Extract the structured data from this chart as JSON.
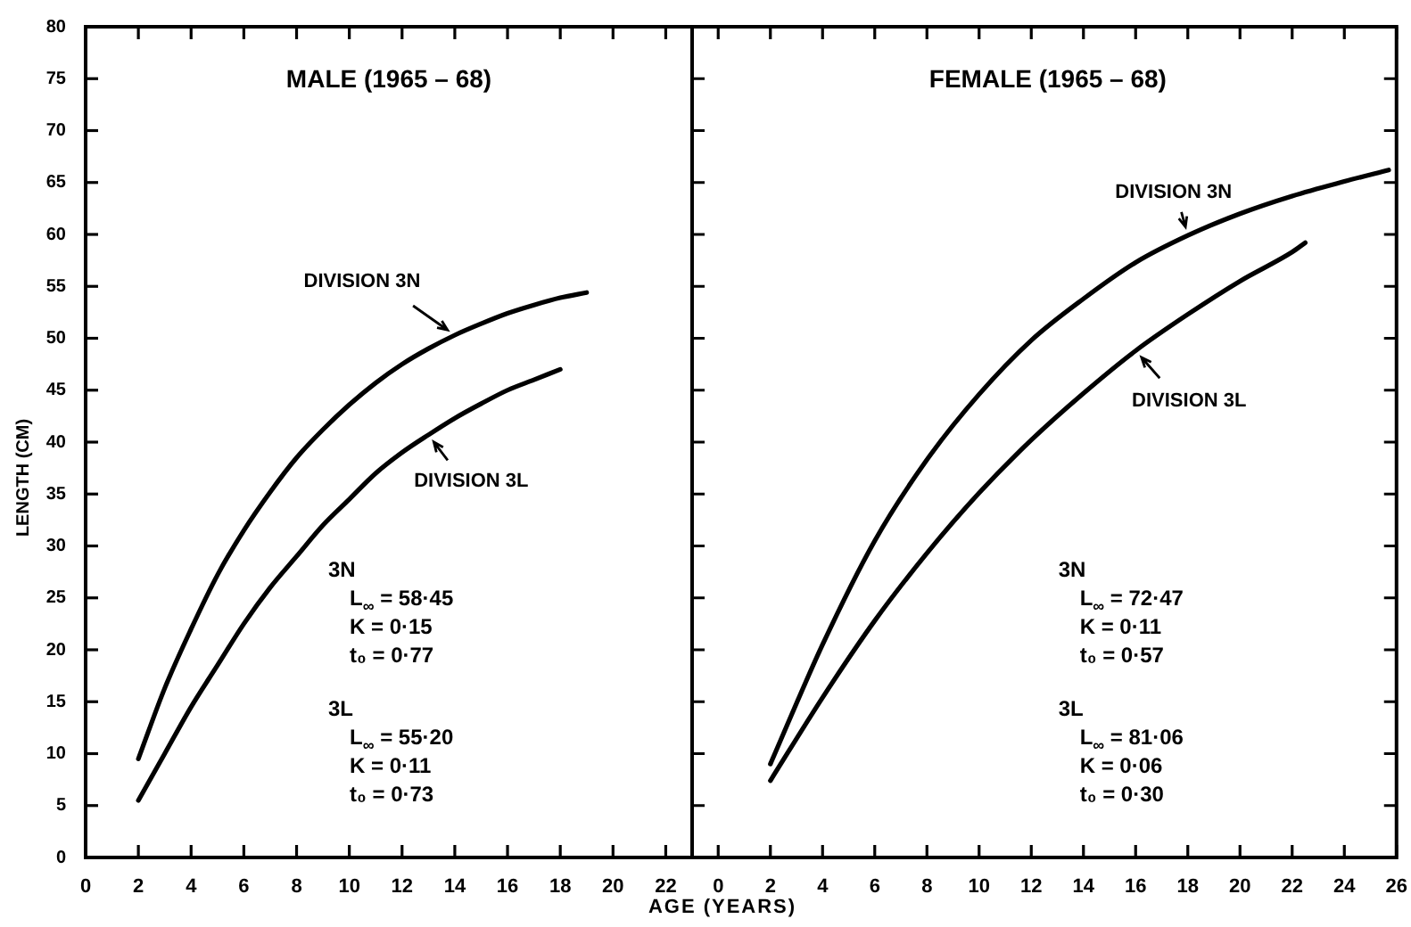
{
  "chart_data": [
    {
      "type": "line",
      "title": "MALE (1965 – 68)",
      "ylabel": "LENGTH (CM)",
      "xlim": [
        0,
        23
      ],
      "xticks": [
        0,
        2,
        4,
        6,
        8,
        10,
        12,
        14,
        16,
        18,
        20,
        22
      ],
      "ylim": [
        0,
        80
      ],
      "yticks": [
        0,
        5,
        10,
        15,
        20,
        25,
        30,
        35,
        40,
        45,
        50,
        55,
        60,
        65,
        70,
        75,
        80
      ],
      "marker": "none",
      "line_style": "solid",
      "series": [
        {
          "name": "DIVISION 3N",
          "color": "#000000",
          "x": [
            2,
            3,
            4,
            5,
            6,
            7,
            8,
            9,
            10,
            11,
            12,
            13,
            14,
            15,
            16,
            17,
            18,
            19
          ],
          "values": [
            9.5,
            16.3,
            22,
            27.2,
            31.5,
            35.2,
            38.5,
            41.2,
            43.6,
            45.7,
            47.5,
            49,
            50.3,
            51.4,
            52.4,
            53.2,
            53.9,
            54.4
          ]
        },
        {
          "name": "DIVISION 3L",
          "color": "#000000",
          "x": [
            2,
            3,
            4,
            5,
            6,
            7,
            8,
            9,
            10,
            11,
            12,
            13,
            14,
            15,
            16,
            17,
            18
          ],
          "values": [
            5.5,
            10,
            14.5,
            18.5,
            22.5,
            26,
            29,
            32,
            34.5,
            37,
            39,
            40.7,
            42.3,
            43.7,
            45,
            46,
            47
          ]
        }
      ],
      "annotations": [
        "3N",
        "L$_{∞}$ = 58·45",
        "K = 0·15",
        "t₀ = 0·77",
        "3L",
        "L$_{∞}$ = 55·20",
        "K = 0·11",
        "t₀ = 0·73"
      ]
    },
    {
      "type": "line",
      "title": "FEMALE (1965 – 68)",
      "xlabel": "AGE (YEARS)",
      "xlim": [
        -1,
        26
      ],
      "xticks": [
        0,
        2,
        4,
        6,
        8,
        10,
        12,
        14,
        16,
        18,
        20,
        22,
        24,
        26
      ],
      "ylim": [
        0,
        80
      ],
      "yticks": [
        0,
        5,
        10,
        15,
        20,
        25,
        30,
        35,
        40,
        45,
        50,
        55,
        60,
        65,
        70,
        75,
        80
      ],
      "tick_labels": "x",
      "marker": "none",
      "line_style": "solid",
      "series": [
        {
          "name": "DIVISION 3N",
          "color": "#000000",
          "x": [
            2,
            4,
            6,
            8,
            10,
            12,
            14,
            16,
            18,
            20,
            22,
            24,
            25.7
          ],
          "values": [
            9,
            20.5,
            30.5,
            38.3,
            44.6,
            49.8,
            53.8,
            57.3,
            59.9,
            62,
            63.7,
            65.1,
            66.2
          ]
        },
        {
          "name": "DIVISION 3L",
          "color": "#000000",
          "x": [
            2,
            4,
            6,
            8,
            10,
            12,
            14,
            16,
            18,
            20,
            22,
            22.5
          ],
          "values": [
            7.4,
            15.4,
            22.8,
            29.3,
            35.1,
            40.2,
            44.7,
            48.8,
            52.3,
            55.5,
            58.3,
            59.2
          ]
        }
      ],
      "annotations": [
        "3N",
        "L$_{∞}$ = 72·47",
        "K = 0·11",
        "t₀ = 0·57",
        "3L",
        "L$_{∞}$ = 81·06",
        "K = 0·06",
        "t₀ = 0·30"
      ]
    }
  ]
}
